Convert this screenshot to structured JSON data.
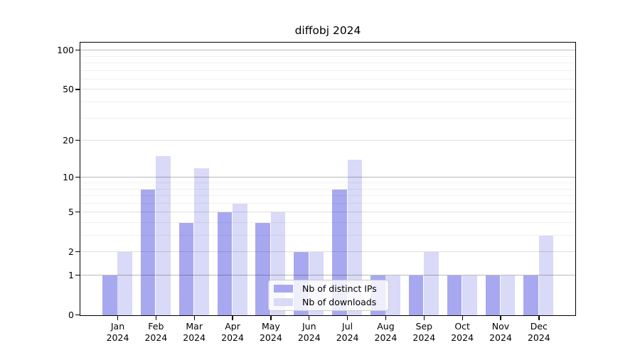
{
  "title": "diffobj 2024",
  "chart_data": {
    "type": "bar",
    "title": "diffobj 2024",
    "categories": [
      "Jan",
      "Feb",
      "Mar",
      "Apr",
      "May",
      "Jun",
      "Jul",
      "Aug",
      "Sep",
      "Oct",
      "Nov",
      "Dec"
    ],
    "category_year": "2024",
    "series": [
      {
        "name": "Nb of distinct IPs",
        "color": "#a8a8f0",
        "values": [
          1,
          8,
          4,
          5,
          4,
          2,
          8,
          1,
          1,
          1,
          1,
          1
        ]
      },
      {
        "name": "Nb of downloads",
        "color": "#d9d9f8",
        "values": [
          2,
          15,
          12,
          6,
          5,
          2,
          14,
          1,
          2,
          1,
          1,
          3
        ]
      }
    ],
    "xlabel": "",
    "ylabel": "",
    "y_scale": "log1p",
    "ylim": [
      0,
      115
    ],
    "y_ticks": [
      0,
      1,
      2,
      5,
      10,
      20,
      50,
      100
    ],
    "grid": true,
    "grid_major_values": [
      1,
      10,
      100
    ],
    "grid_mid_values": [
      2,
      5,
      20,
      50
    ],
    "grid_minor_values": [
      3,
      4,
      6,
      7,
      8,
      9,
      30,
      40,
      60,
      70,
      80,
      90
    ],
    "legend_position": "lower center"
  },
  "legend": {
    "items": [
      {
        "label": "Nb of distinct IPs",
        "color": "#a8a8f0"
      },
      {
        "label": "Nb of downloads",
        "color": "#d9d9f8"
      }
    ]
  },
  "colors": {
    "axis": "#000000",
    "grid_major": "rgba(0,0,0,0.27)",
    "grid_mid": "rgba(0,0,0,0.12)",
    "grid_minor": "rgba(0,0,0,0.06)",
    "legend_border": "#cccccc",
    "legend_background": "rgba(255,255,255,0.8)",
    "text": "#000000",
    "background": "#ffffff"
  }
}
